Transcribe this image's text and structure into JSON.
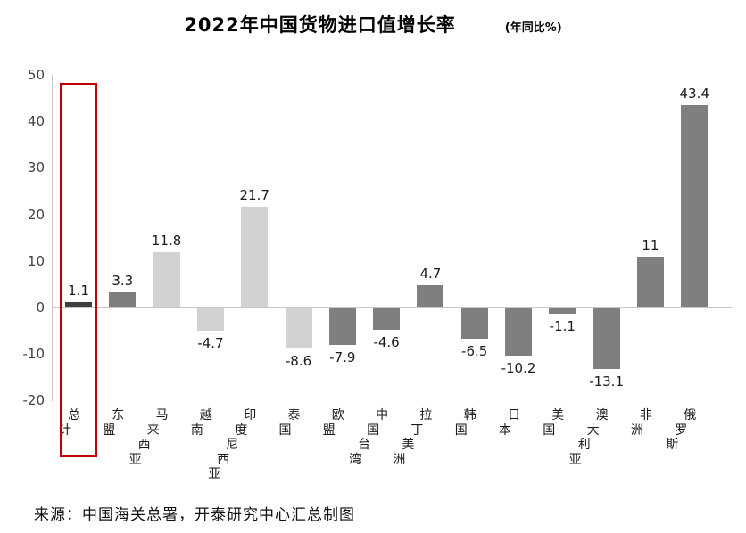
{
  "header": {
    "title": "2022年中国货物进口值增长率",
    "subtitle": "(年同比%)"
  },
  "footer": {
    "source": "来源：中国海关总署，开泰研究中心汇总制图"
  },
  "chart_data": {
    "type": "bar",
    "title": "2022年中国货物进口值增长率",
    "subtitle": "(年同比%)",
    "categories": [
      "总计",
      "东盟",
      "马来西亚",
      "越南",
      "印度尼西亚",
      "泰国",
      "欧盟",
      "中国台湾",
      "拉丁美洲",
      "韩国",
      "日本",
      "美国",
      "澳大利亚",
      "非洲",
      "俄罗斯"
    ],
    "values": [
      1.1,
      3.3,
      11.8,
      -4.7,
      21.7,
      -8.6,
      -7.9,
      -4.6,
      4.7,
      -6.5,
      -10.2,
      -1.1,
      -13.1,
      11,
      43.4
    ],
    "value_labels": [
      "1.1",
      "3.3",
      "11.8",
      "-4.7",
      "21.7",
      "-8.6",
      "-7.9",
      "-4.6",
      "4.7",
      "-6.5",
      "-10.2",
      "-1.1",
      "-13.1",
      "11",
      "43.4"
    ],
    "ylim": [
      -20,
      50
    ],
    "yticks": [
      50,
      40,
      30,
      20,
      10,
      0,
      -10,
      -20
    ],
    "grid": "zero-line-only",
    "legend": "none",
    "bar_colors": [
      "#3f3f3f",
      "#7f7f7f",
      "#d2d2d2",
      "#d2d2d2",
      "#d2d2d2",
      "#d2d2d2",
      "#7f7f7f",
      "#7f7f7f",
      "#7f7f7f",
      "#7f7f7f",
      "#7f7f7f",
      "#7f7f7f",
      "#7f7f7f",
      "#7f7f7f",
      "#7f7f7f"
    ],
    "axis_color": "#c6c6c6",
    "highlight": {
      "index": 0,
      "category": "总计",
      "color": "#c00000"
    }
  }
}
